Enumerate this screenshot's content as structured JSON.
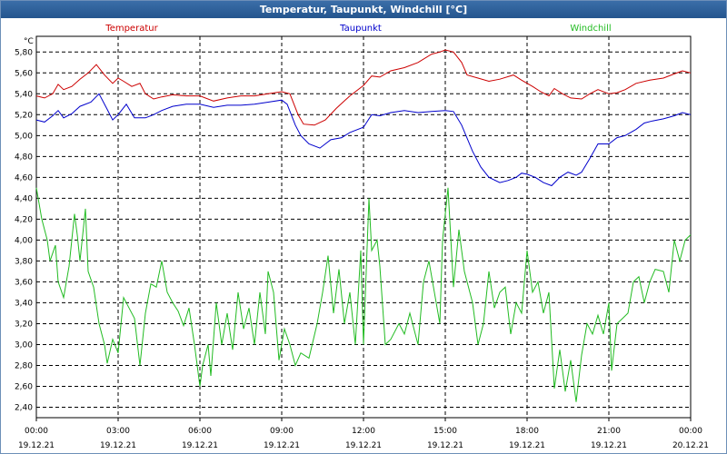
{
  "window": {
    "title": "Temperatur, Taupunkt, Windchill [°C]"
  },
  "chart_data": {
    "type": "line",
    "unit_label": "°C",
    "ylim": [
      2.3,
      5.95
    ],
    "yticks": [
      "2,40",
      "2,60",
      "2,80",
      "3,00",
      "3,20",
      "3,40",
      "3,60",
      "3,80",
      "4,00",
      "4,20",
      "4,40",
      "4,60",
      "4,80",
      "5,00",
      "5,20",
      "5,40",
      "5,60",
      "5,80"
    ],
    "xlim": [
      0,
      24
    ],
    "xticks": [
      {
        "time": "00:00",
        "date": "19.12.21"
      },
      {
        "time": "03:00",
        "date": "19.12.21"
      },
      {
        "time": "06:00",
        "date": "19.12.21"
      },
      {
        "time": "09:00",
        "date": "19.12.21"
      },
      {
        "time": "12:00",
        "date": "19.12.21"
      },
      {
        "time": "15:00",
        "date": "19.12.21"
      },
      {
        "time": "18:00",
        "date": "19.12.21"
      },
      {
        "time": "21:00",
        "date": "19.12.21"
      },
      {
        "time": "00:00",
        "date": "20.12.21"
      }
    ],
    "grid": true,
    "series": [
      {
        "name": "Temperatur",
        "color": "#cc0000",
        "points": [
          [
            0,
            5.38
          ],
          [
            0.3,
            5.36
          ],
          [
            0.6,
            5.4
          ],
          [
            0.8,
            5.49
          ],
          [
            1.0,
            5.44
          ],
          [
            1.3,
            5.47
          ],
          [
            1.6,
            5.54
          ],
          [
            1.9,
            5.6
          ],
          [
            2.2,
            5.68
          ],
          [
            2.5,
            5.58
          ],
          [
            2.8,
            5.5
          ],
          [
            3.0,
            5.55
          ],
          [
            3.2,
            5.52
          ],
          [
            3.5,
            5.47
          ],
          [
            3.8,
            5.5
          ],
          [
            4.0,
            5.4
          ],
          [
            4.3,
            5.35
          ],
          [
            4.6,
            5.37
          ],
          [
            5.0,
            5.39
          ],
          [
            5.5,
            5.38
          ],
          [
            6.0,
            5.38
          ],
          [
            6.5,
            5.33
          ],
          [
            7.0,
            5.36
          ],
          [
            7.5,
            5.38
          ],
          [
            8.0,
            5.38
          ],
          [
            8.5,
            5.4
          ],
          [
            9.0,
            5.42
          ],
          [
            9.3,
            5.4
          ],
          [
            9.6,
            5.2
          ],
          [
            9.8,
            5.11
          ],
          [
            10.2,
            5.1
          ],
          [
            10.6,
            5.15
          ],
          [
            11.0,
            5.26
          ],
          [
            11.5,
            5.38
          ],
          [
            12.0,
            5.48
          ],
          [
            12.3,
            5.57
          ],
          [
            12.6,
            5.56
          ],
          [
            13.0,
            5.62
          ],
          [
            13.5,
            5.65
          ],
          [
            14.0,
            5.7
          ],
          [
            14.5,
            5.78
          ],
          [
            14.8,
            5.8
          ],
          [
            15.0,
            5.82
          ],
          [
            15.3,
            5.8
          ],
          [
            15.6,
            5.7
          ],
          [
            15.8,
            5.58
          ],
          [
            16.2,
            5.55
          ],
          [
            16.6,
            5.52
          ],
          [
            17.0,
            5.54
          ],
          [
            17.5,
            5.58
          ],
          [
            17.8,
            5.53
          ],
          [
            18.2,
            5.47
          ],
          [
            18.5,
            5.42
          ],
          [
            18.8,
            5.38
          ],
          [
            19.0,
            5.45
          ],
          [
            19.3,
            5.4
          ],
          [
            19.6,
            5.36
          ],
          [
            20.0,
            5.35
          ],
          [
            20.3,
            5.4
          ],
          [
            20.6,
            5.44
          ],
          [
            21.0,
            5.4
          ],
          [
            21.3,
            5.41
          ],
          [
            21.6,
            5.44
          ],
          [
            22.0,
            5.5
          ],
          [
            22.5,
            5.53
          ],
          [
            23.0,
            5.55
          ],
          [
            23.4,
            5.59
          ],
          [
            23.7,
            5.62
          ],
          [
            24.0,
            5.6
          ]
        ]
      },
      {
        "name": "Taupunkt",
        "color": "#0000cc",
        "points": [
          [
            0,
            5.15
          ],
          [
            0.3,
            5.13
          ],
          [
            0.6,
            5.19
          ],
          [
            0.8,
            5.24
          ],
          [
            1.0,
            5.17
          ],
          [
            1.3,
            5.21
          ],
          [
            1.6,
            5.28
          ],
          [
            2.0,
            5.32
          ],
          [
            2.3,
            5.4
          ],
          [
            2.6,
            5.25
          ],
          [
            2.8,
            5.15
          ],
          [
            3.0,
            5.2
          ],
          [
            3.3,
            5.3
          ],
          [
            3.6,
            5.17
          ],
          [
            4.0,
            5.17
          ],
          [
            4.3,
            5.2
          ],
          [
            4.6,
            5.24
          ],
          [
            5.0,
            5.28
          ],
          [
            5.5,
            5.3
          ],
          [
            6.0,
            5.3
          ],
          [
            6.5,
            5.27
          ],
          [
            7.0,
            5.29
          ],
          [
            7.5,
            5.29
          ],
          [
            8.0,
            5.3
          ],
          [
            8.5,
            5.32
          ],
          [
            9.0,
            5.34
          ],
          [
            9.2,
            5.3
          ],
          [
            9.5,
            5.1
          ],
          [
            9.7,
            5.0
          ],
          [
            10.0,
            4.92
          ],
          [
            10.4,
            4.88
          ],
          [
            10.8,
            4.96
          ],
          [
            11.2,
            4.98
          ],
          [
            11.5,
            5.03
          ],
          [
            12.0,
            5.08
          ],
          [
            12.3,
            5.2
          ],
          [
            12.6,
            5.19
          ],
          [
            13.0,
            5.22
          ],
          [
            13.5,
            5.24
          ],
          [
            14.0,
            5.22
          ],
          [
            14.5,
            5.23
          ],
          [
            15.0,
            5.24
          ],
          [
            15.3,
            5.23
          ],
          [
            15.6,
            5.1
          ],
          [
            16.0,
            4.85
          ],
          [
            16.3,
            4.7
          ],
          [
            16.6,
            4.6
          ],
          [
            17.0,
            4.55
          ],
          [
            17.3,
            4.57
          ],
          [
            17.6,
            4.6
          ],
          [
            17.8,
            4.64
          ],
          [
            18.0,
            4.63
          ],
          [
            18.3,
            4.6
          ],
          [
            18.6,
            4.55
          ],
          [
            18.9,
            4.52
          ],
          [
            19.2,
            4.6
          ],
          [
            19.5,
            4.65
          ],
          [
            19.8,
            4.62
          ],
          [
            20.0,
            4.65
          ],
          [
            20.3,
            4.78
          ],
          [
            20.6,
            4.92
          ],
          [
            21.0,
            4.92
          ],
          [
            21.3,
            4.98
          ],
          [
            21.6,
            5.0
          ],
          [
            22.0,
            5.06
          ],
          [
            22.3,
            5.12
          ],
          [
            22.6,
            5.14
          ],
          [
            23.0,
            5.16
          ],
          [
            23.4,
            5.19
          ],
          [
            23.7,
            5.22
          ],
          [
            24.0,
            5.2
          ]
        ]
      },
      {
        "name": "Windchill",
        "color": "#22bb22",
        "points": [
          [
            0,
            4.5
          ],
          [
            0.2,
            4.2
          ],
          [
            0.4,
            4.0
          ],
          [
            0.5,
            3.8
          ],
          [
            0.7,
            3.95
          ],
          [
            0.8,
            3.6
          ],
          [
            1.0,
            3.45
          ],
          [
            1.2,
            3.75
          ],
          [
            1.4,
            4.25
          ],
          [
            1.5,
            4.05
          ],
          [
            1.6,
            3.8
          ],
          [
            1.8,
            4.3
          ],
          [
            1.9,
            3.7
          ],
          [
            2.1,
            3.55
          ],
          [
            2.3,
            3.2
          ],
          [
            2.5,
            3.0
          ],
          [
            2.6,
            2.82
          ],
          [
            2.8,
            3.05
          ],
          [
            3.0,
            2.92
          ],
          [
            3.2,
            3.45
          ],
          [
            3.4,
            3.35
          ],
          [
            3.6,
            3.25
          ],
          [
            3.8,
            2.8
          ],
          [
            4.0,
            3.3
          ],
          [
            4.2,
            3.58
          ],
          [
            4.4,
            3.55
          ],
          [
            4.6,
            3.8
          ],
          [
            4.8,
            3.5
          ],
          [
            5.0,
            3.4
          ],
          [
            5.2,
            3.32
          ],
          [
            5.4,
            3.18
          ],
          [
            5.6,
            3.35
          ],
          [
            5.8,
            3.0
          ],
          [
            6.0,
            2.6
          ],
          [
            6.1,
            2.8
          ],
          [
            6.3,
            3.0
          ],
          [
            6.4,
            2.7
          ],
          [
            6.6,
            3.4
          ],
          [
            6.8,
            3.0
          ],
          [
            7.0,
            3.3
          ],
          [
            7.2,
            2.95
          ],
          [
            7.4,
            3.5
          ],
          [
            7.6,
            3.15
          ],
          [
            7.8,
            3.35
          ],
          [
            8.0,
            3.0
          ],
          [
            8.2,
            3.5
          ],
          [
            8.4,
            3.1
          ],
          [
            8.5,
            3.7
          ],
          [
            8.7,
            3.5
          ],
          [
            8.9,
            2.85
          ],
          [
            9.1,
            3.15
          ],
          [
            9.3,
            3.0
          ],
          [
            9.5,
            2.8
          ],
          [
            9.7,
            2.92
          ],
          [
            10.0,
            2.87
          ],
          [
            10.3,
            3.2
          ],
          [
            10.5,
            3.5
          ],
          [
            10.7,
            3.85
          ],
          [
            10.9,
            3.3
          ],
          [
            11.1,
            3.72
          ],
          [
            11.3,
            3.2
          ],
          [
            11.5,
            3.5
          ],
          [
            11.7,
            3.0
          ],
          [
            11.9,
            3.9
          ],
          [
            12.0,
            3.0
          ],
          [
            12.2,
            4.4
          ],
          [
            12.3,
            3.9
          ],
          [
            12.5,
            4.0
          ],
          [
            12.6,
            3.75
          ],
          [
            12.8,
            3.0
          ],
          [
            13.0,
            3.05
          ],
          [
            13.3,
            3.2
          ],
          [
            13.5,
            3.1
          ],
          [
            13.7,
            3.3
          ],
          [
            14.0,
            3.0
          ],
          [
            14.2,
            3.6
          ],
          [
            14.4,
            3.8
          ],
          [
            14.6,
            3.5
          ],
          [
            14.8,
            3.2
          ],
          [
            14.9,
            4.0
          ],
          [
            15.1,
            4.5
          ],
          [
            15.3,
            3.55
          ],
          [
            15.5,
            4.1
          ],
          [
            15.7,
            3.7
          ],
          [
            15.8,
            3.6
          ],
          [
            16.0,
            3.4
          ],
          [
            16.2,
            3.0
          ],
          [
            16.4,
            3.2
          ],
          [
            16.6,
            3.7
          ],
          [
            16.8,
            3.35
          ],
          [
            17.0,
            3.5
          ],
          [
            17.2,
            3.55
          ],
          [
            17.4,
            3.1
          ],
          [
            17.6,
            3.4
          ],
          [
            17.8,
            3.3
          ],
          [
            18.0,
            3.9
          ],
          [
            18.2,
            3.5
          ],
          [
            18.4,
            3.6
          ],
          [
            18.6,
            3.3
          ],
          [
            18.8,
            3.5
          ],
          [
            19.0,
            2.58
          ],
          [
            19.2,
            2.95
          ],
          [
            19.4,
            2.55
          ],
          [
            19.6,
            2.85
          ],
          [
            19.8,
            2.45
          ],
          [
            20.0,
            2.9
          ],
          [
            20.2,
            3.2
          ],
          [
            20.4,
            3.1
          ],
          [
            20.6,
            3.28
          ],
          [
            20.8,
            3.1
          ],
          [
            21.0,
            3.4
          ],
          [
            21.1,
            2.75
          ],
          [
            21.3,
            3.2
          ],
          [
            21.5,
            3.25
          ],
          [
            21.7,
            3.3
          ],
          [
            21.9,
            3.6
          ],
          [
            22.1,
            3.65
          ],
          [
            22.3,
            3.4
          ],
          [
            22.5,
            3.6
          ],
          [
            22.7,
            3.72
          ],
          [
            23.0,
            3.7
          ],
          [
            23.2,
            3.5
          ],
          [
            23.4,
            4.0
          ],
          [
            23.6,
            3.8
          ],
          [
            23.8,
            4.0
          ],
          [
            24.0,
            4.05
          ]
        ]
      }
    ]
  }
}
